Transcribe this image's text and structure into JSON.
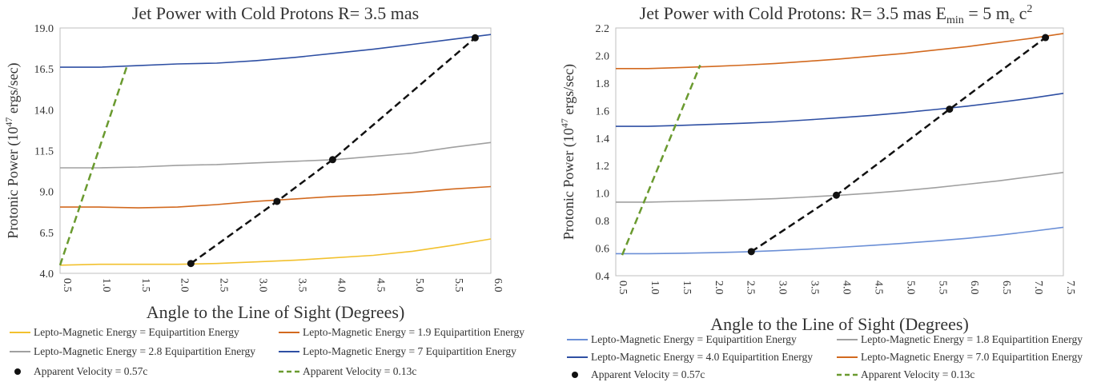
{
  "chart_data": [
    {
      "type": "line",
      "title": "Jet Power with Cold Protons R= 3.5 mas",
      "xlabel": "Angle to the Line of Sight (Degrees)",
      "ylabel": "Protonic Power (10",
      "ylabel_sup": "47",
      "ylabel_tail": " ergs/sec)",
      "xlim": [
        0.5,
        6.0
      ],
      "ylim": [
        4.0,
        19.0
      ],
      "xticks": [
        "0.5",
        "1.0",
        "1.5",
        "2.0",
        "2.5",
        "3.0",
        "3.5",
        "4.0",
        "4.5",
        "5.0",
        "5.5",
        "6.0"
      ],
      "yticks": [
        "4.0",
        "6.5",
        "9.0",
        "11.5",
        "14.0",
        "16.5",
        "19.0"
      ],
      "grid": false,
      "legend_position": "bottom",
      "series": [
        {
          "name": "Lepto-Magnetic Energy = Equipartition Energy",
          "color": "#f2c12e",
          "style": "solid",
          "x": [
            0.5,
            1.0,
            1.5,
            2.0,
            2.5,
            3.0,
            3.5,
            4.0,
            4.5,
            5.0,
            5.5,
            6.0
          ],
          "y": [
            4.5,
            4.55,
            4.55,
            4.55,
            4.6,
            4.7,
            4.8,
            4.95,
            5.1,
            5.35,
            5.7,
            6.1
          ]
        },
        {
          "name": "Lepto-Magnetic Energy = 1.9 Equipartition Energy",
          "color": "#d2691e",
          "style": "solid",
          "x": [
            0.5,
            1.0,
            1.5,
            2.0,
            2.5,
            3.0,
            3.5,
            4.0,
            4.5,
            5.0,
            5.5,
            6.0
          ],
          "y": [
            8.05,
            8.05,
            8.0,
            8.05,
            8.2,
            8.4,
            8.55,
            8.7,
            8.8,
            8.95,
            9.15,
            9.3
          ]
        },
        {
          "name": "Lepto-Magnetic Energy = 2.8 Equipartition Energy",
          "color": "#a0a0a0",
          "style": "solid",
          "x": [
            0.5,
            1.0,
            1.5,
            2.0,
            2.5,
            3.0,
            3.5,
            4.0,
            4.5,
            5.0,
            5.5,
            6.0
          ],
          "y": [
            10.45,
            10.45,
            10.5,
            10.6,
            10.65,
            10.75,
            10.85,
            10.95,
            11.15,
            11.35,
            11.7,
            12.0
          ]
        },
        {
          "name": "Lepto-Magnetic Energy = 7 Equipartition Energy",
          "color": "#2e4fa3",
          "style": "solid",
          "x": [
            0.5,
            1.0,
            1.5,
            2.0,
            2.5,
            3.0,
            3.5,
            4.0,
            4.5,
            5.0,
            5.5,
            6.0
          ],
          "y": [
            16.6,
            16.6,
            16.7,
            16.8,
            16.85,
            17.0,
            17.2,
            17.45,
            17.7,
            18.0,
            18.3,
            18.6
          ]
        },
        {
          "name": "Apparent Velocity = 0.57c",
          "color": "#111111",
          "style": "dash-markers",
          "x": [
            2.17,
            3.27,
            3.98,
            5.8
          ],
          "y": [
            4.6,
            8.4,
            10.95,
            18.4
          ]
        },
        {
          "name": "Apparent Velocity = 0.13c",
          "color": "#6a9a2f",
          "style": "dash",
          "x": [
            0.5,
            1.35
          ],
          "y": [
            4.5,
            16.6
          ]
        }
      ],
      "legend": [
        {
          "label": "Lepto-Magnetic Energy = Equipartition Energy",
          "color": "#f2c12e",
          "kind": "line"
        },
        {
          "label": "Lepto-Magnetic Energy = 1.9 Equipartition Energy",
          "color": "#d2691e",
          "kind": "line"
        },
        {
          "label": "Lepto-Magnetic Energy = 2.8 Equipartition Energy",
          "color": "#a0a0a0",
          "kind": "line"
        },
        {
          "label": "Lepto-Magnetic Energy = 7 Equipartition Energy",
          "color": "#2e4fa3",
          "kind": "line"
        },
        {
          "label": "Apparent Velocity = 0.57c",
          "color": "#111111",
          "kind": "dot"
        },
        {
          "label": "Apparent Velocity = 0.13c",
          "color": "#6a9a2f",
          "kind": "dash"
        }
      ]
    },
    {
      "type": "line",
      "title": "Jet Power with Cold Protons: R= 3.5 mas E",
      "title_sub": "min",
      "title_mid": " = 5 m",
      "title_sub2": "e",
      "title_tail": " c",
      "title_sup": "2",
      "xlabel": "Angle to the Line of Sight (Degrees)",
      "ylabel": "Protonic Power (10",
      "ylabel_sup": "47",
      "ylabel_tail": " ergs/sec)",
      "xlim": [
        0.5,
        7.5
      ],
      "ylim": [
        0.4,
        2.2
      ],
      "xticks": [
        "0.5",
        "1.0",
        "1.5",
        "2.0",
        "2.5",
        "3.0",
        "3.5",
        "4.0",
        "4.5",
        "5.0",
        "5.5",
        "6.0",
        "6.5",
        "7.0",
        "7.5"
      ],
      "yticks": [
        "0.4",
        "0.6",
        "0.8",
        "1.0",
        "1.2",
        "1.4",
        "1.6",
        "1.8",
        "2.0",
        "2.2"
      ],
      "grid": false,
      "legend_position": "bottom",
      "series": [
        {
          "name": "Lepto-Magnetic Energy =  Equipartition Energy",
          "color": "#6b8fd6",
          "style": "solid",
          "x": [
            0.5,
            1.0,
            1.5,
            2.0,
            2.5,
            3.0,
            3.5,
            4.0,
            4.5,
            5.0,
            5.5,
            6.0,
            6.5,
            7.0,
            7.5
          ],
          "y": [
            0.56,
            0.56,
            0.563,
            0.567,
            0.573,
            0.582,
            0.593,
            0.606,
            0.62,
            0.636,
            0.653,
            0.672,
            0.695,
            0.722,
            0.752
          ]
        },
        {
          "name": "Lepto-Magnetic Energy = 1.8 Equipartition Energy",
          "color": "#a0a0a0",
          "style": "solid",
          "x": [
            0.5,
            1.0,
            1.5,
            2.0,
            2.5,
            3.0,
            3.5,
            4.0,
            4.5,
            5.0,
            5.5,
            6.0,
            6.5,
            7.0,
            7.5
          ],
          "y": [
            0.935,
            0.935,
            0.94,
            0.945,
            0.952,
            0.96,
            0.972,
            0.985,
            1.0,
            1.018,
            1.04,
            1.065,
            1.09,
            1.12,
            1.15
          ]
        },
        {
          "name": "Lepto-Magnetic Energy = 4.0 Equipartition Energy",
          "color": "#2e4fa3",
          "style": "solid",
          "x": [
            0.5,
            1.0,
            1.5,
            2.0,
            2.5,
            3.0,
            3.5,
            4.0,
            4.5,
            5.0,
            5.5,
            6.0,
            6.5,
            7.0,
            7.5
          ],
          "y": [
            1.485,
            1.485,
            1.492,
            1.5,
            1.508,
            1.518,
            1.532,
            1.548,
            1.565,
            1.585,
            1.608,
            1.632,
            1.66,
            1.69,
            1.725
          ]
        },
        {
          "name": "Lepto-Magnetic Energy = 7.0 Equipartition Energy",
          "color": "#d2691e",
          "style": "solid",
          "x": [
            0.5,
            1.0,
            1.5,
            2.0,
            2.5,
            3.0,
            3.5,
            4.0,
            4.5,
            5.0,
            5.5,
            6.0,
            6.5,
            7.0,
            7.5
          ],
          "y": [
            1.905,
            1.905,
            1.912,
            1.92,
            1.93,
            1.942,
            1.958,
            1.975,
            1.995,
            2.015,
            2.04,
            2.065,
            2.095,
            2.125,
            2.16
          ]
        },
        {
          "name": "Apparent Velocity = 0.57c",
          "color": "#111111",
          "style": "dash-markers",
          "x": [
            2.62,
            3.95,
            5.72,
            7.22
          ],
          "y": [
            0.575,
            0.985,
            1.61,
            2.13
          ]
        },
        {
          "name": "Apparent Velocity = 0.13c",
          "color": "#6a9a2f",
          "style": "dash",
          "x": [
            0.6,
            1.82
          ],
          "y": [
            0.55,
            1.93
          ]
        }
      ],
      "legend": [
        {
          "label": "Lepto-Magnetic Energy =  Equipartition Energy",
          "color": "#6b8fd6",
          "kind": "line"
        },
        {
          "label": "Lepto-Magnetic Energy = 1.8 Equipartition Energy",
          "color": "#a0a0a0",
          "kind": "line"
        },
        {
          "label": "Lepto-Magnetic Energy = 4.0 Equipartition Energy",
          "color": "#2e4fa3",
          "kind": "line"
        },
        {
          "label": "Lepto-Magnetic Energy = 7.0 Equipartition Energy",
          "color": "#d2691e",
          "kind": "line"
        },
        {
          "label": "Apparent Velocity = 0.57c",
          "color": "#111111",
          "kind": "dot"
        },
        {
          "label": "Apparent Velocity = 0.13c",
          "color": "#6a9a2f",
          "kind": "dash"
        }
      ]
    }
  ]
}
